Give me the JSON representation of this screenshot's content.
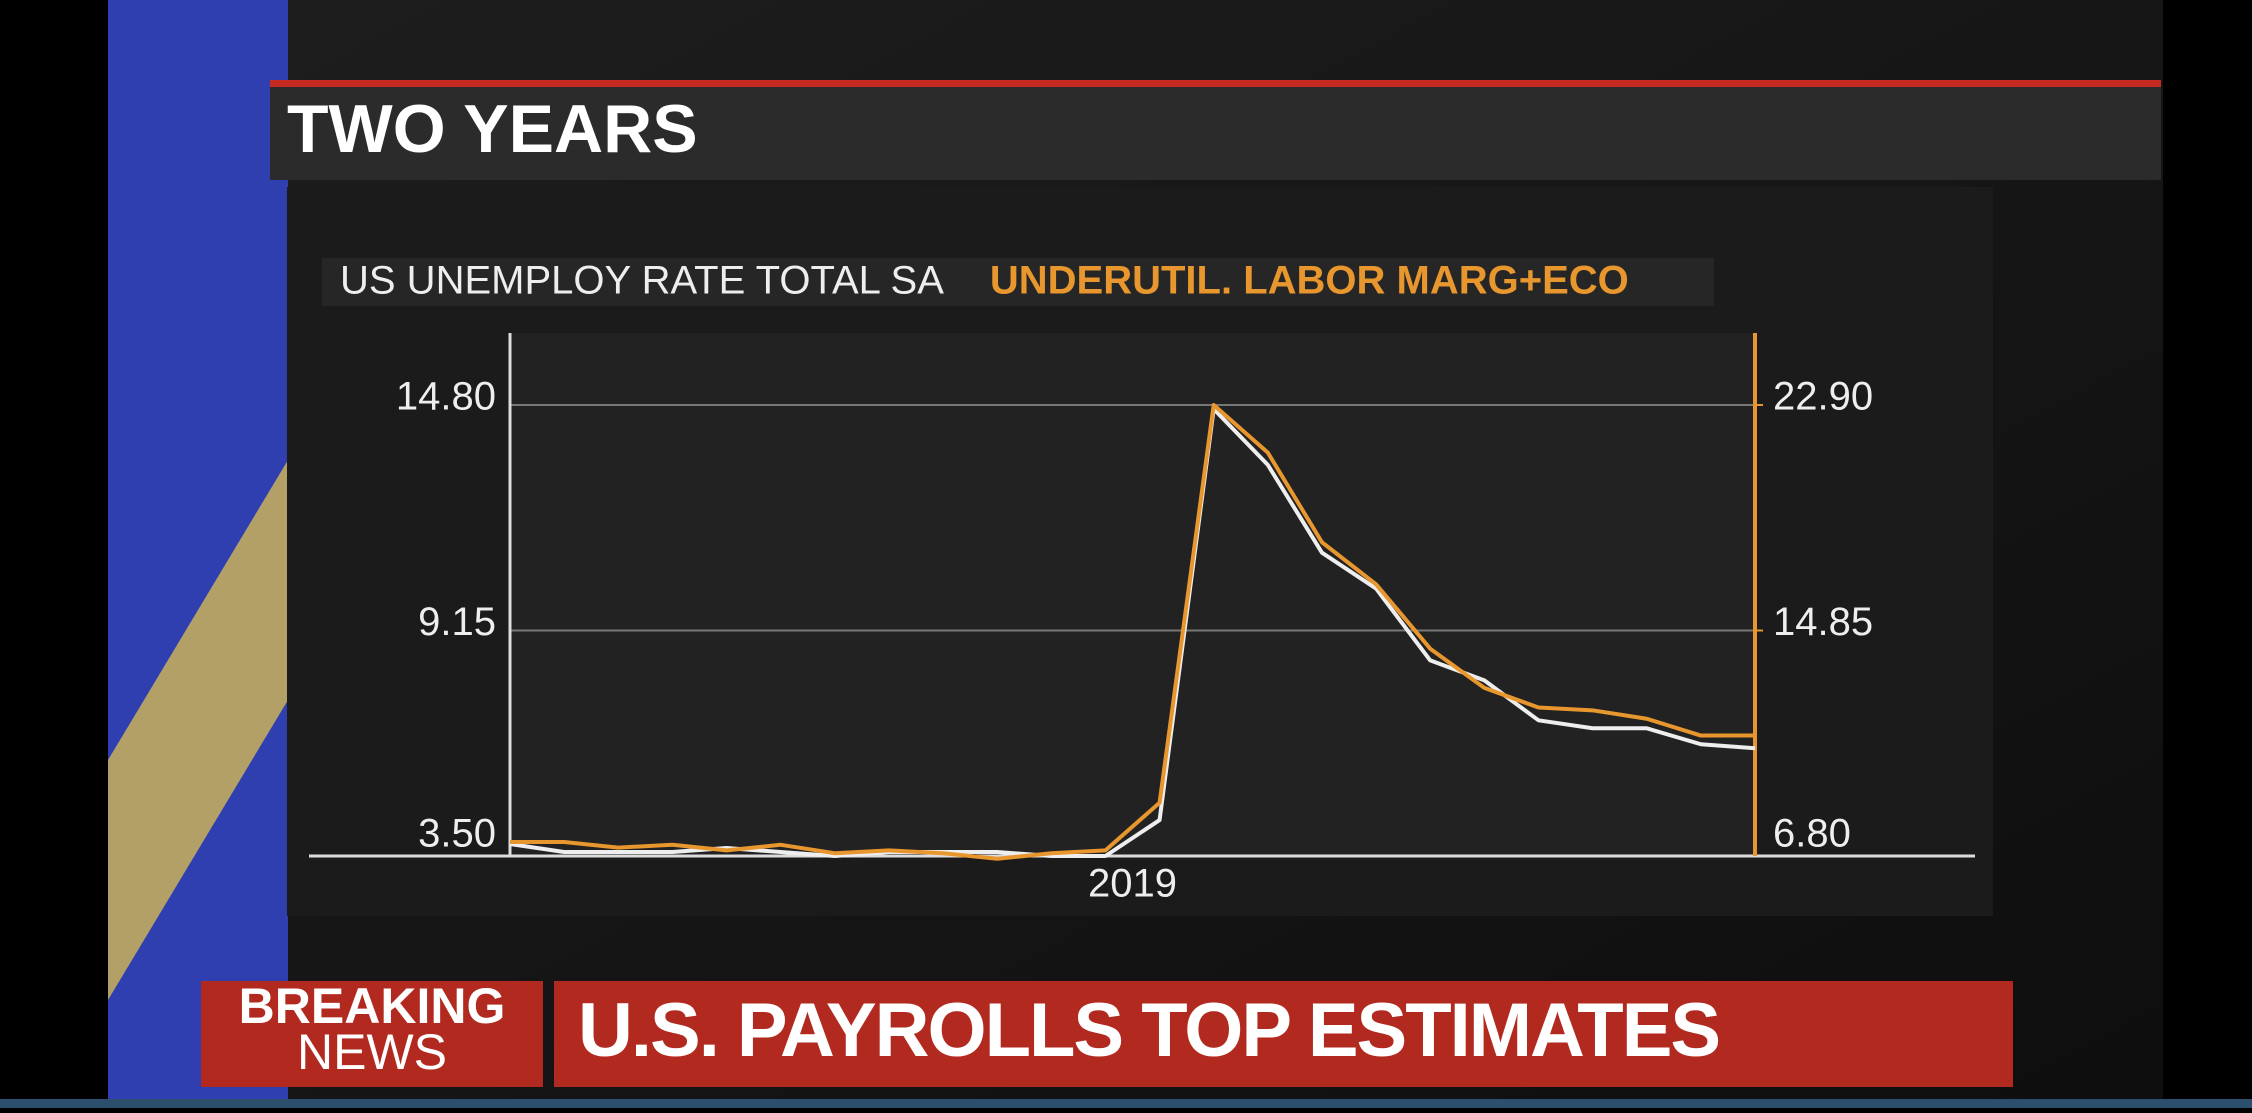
{
  "header": {
    "title": "TWO YEARS"
  },
  "chart_data": {
    "type": "line",
    "categories": [
      null,
      null,
      null,
      null,
      null,
      null,
      null,
      null,
      null,
      null,
      null,
      "2019",
      null,
      null,
      null,
      null,
      null,
      null,
      null,
      null,
      null,
      null,
      null,
      null
    ],
    "series": [
      {
        "name": "US UNEMPLOY RATE TOTAL SA",
        "color": "#eeeeee",
        "axis": "y",
        "values": [
          3.8,
          3.6,
          3.6,
          3.6,
          3.7,
          3.6,
          3.5,
          3.6,
          3.6,
          3.6,
          3.5,
          3.5,
          4.4,
          14.7,
          13.3,
          11.1,
          10.2,
          8.4,
          7.9,
          6.9,
          6.7,
          6.7,
          6.3,
          6.2
        ]
      },
      {
        "name": "UNDERUTIL. LABOR MARG+ECO",
        "color": "#e8962e",
        "axis": "y2",
        "values": [
          7.3,
          7.3,
          7.1,
          7.2,
          7.0,
          7.2,
          6.9,
          7.0,
          6.9,
          6.7,
          6.9,
          7.0,
          8.7,
          22.9,
          21.2,
          18.0,
          16.5,
          14.2,
          12.8,
          12.1,
          12.0,
          11.7,
          11.1,
          11.1
        ]
      }
    ],
    "ylim": [
      3.5,
      14.8
    ],
    "yticks": [
      {
        "value": 3.5,
        "label": "3.50"
      },
      9.15,
      {
        "value": 14.8,
        "label": "14.80"
      }
    ],
    "y2lim": [
      6.8,
      22.9
    ],
    "y2ticks": [
      {
        "value": 6.8,
        "label": "6.80"
      },
      14.85,
      {
        "value": 22.9,
        "label": "22.90"
      }
    ],
    "grid": true
  },
  "banner": {
    "tag_line1": "BREAKING",
    "tag_line2": "NEWS",
    "headline": "U.S. PAYROLLS TOP ESTIMATES"
  }
}
